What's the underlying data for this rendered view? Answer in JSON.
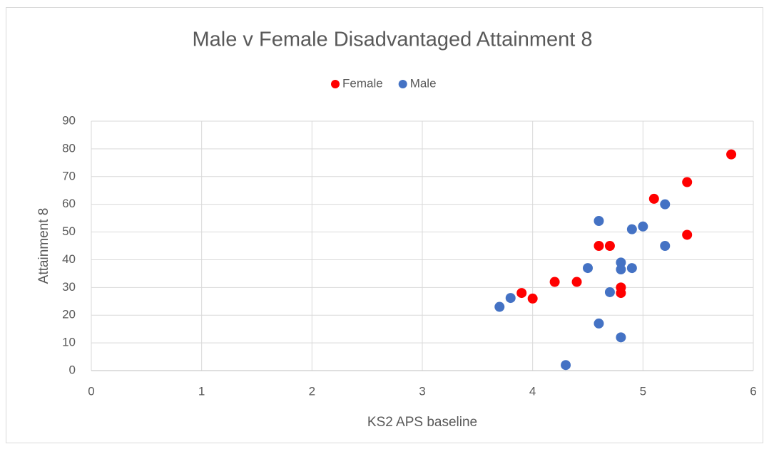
{
  "chart_data": {
    "type": "scatter",
    "title": "Male v Female Disadvantaged Attainment 8",
    "x_label": "KS2 APS baseline",
    "y_label": "Attainment 8",
    "xlim": [
      0,
      6
    ],
    "xticks": [
      0,
      1,
      2,
      3,
      4,
      5,
      6
    ],
    "ylim": [
      0,
      90
    ],
    "yticks": [
      0,
      10,
      20,
      30,
      40,
      50,
      60,
      70,
      80,
      90
    ],
    "grid": true,
    "legend": "top",
    "series": [
      {
        "name": "Female",
        "color": "#ff0000",
        "x": [
          5.8,
          5.4,
          5.1,
          5.4,
          4.6,
          4.7,
          4.2,
          4.4,
          4.8,
          4.8,
          3.9,
          4.0
        ],
        "values": [
          78,
          68,
          62,
          49,
          45,
          45,
          32,
          32,
          30,
          28,
          28,
          26
        ]
      },
      {
        "name": "Male",
        "color": "#4472c4",
        "x": [
          5.2,
          4.6,
          5.0,
          4.9,
          5.2,
          4.8,
          4.5,
          4.9,
          4.8,
          4.7,
          3.8,
          3.7,
          4.6,
          4.8,
          4.3
        ],
        "values": [
          60,
          54,
          52,
          51,
          45,
          39,
          37,
          37,
          36.5,
          28.3,
          26.2,
          23,
          17,
          12,
          2
        ]
      }
    ]
  }
}
